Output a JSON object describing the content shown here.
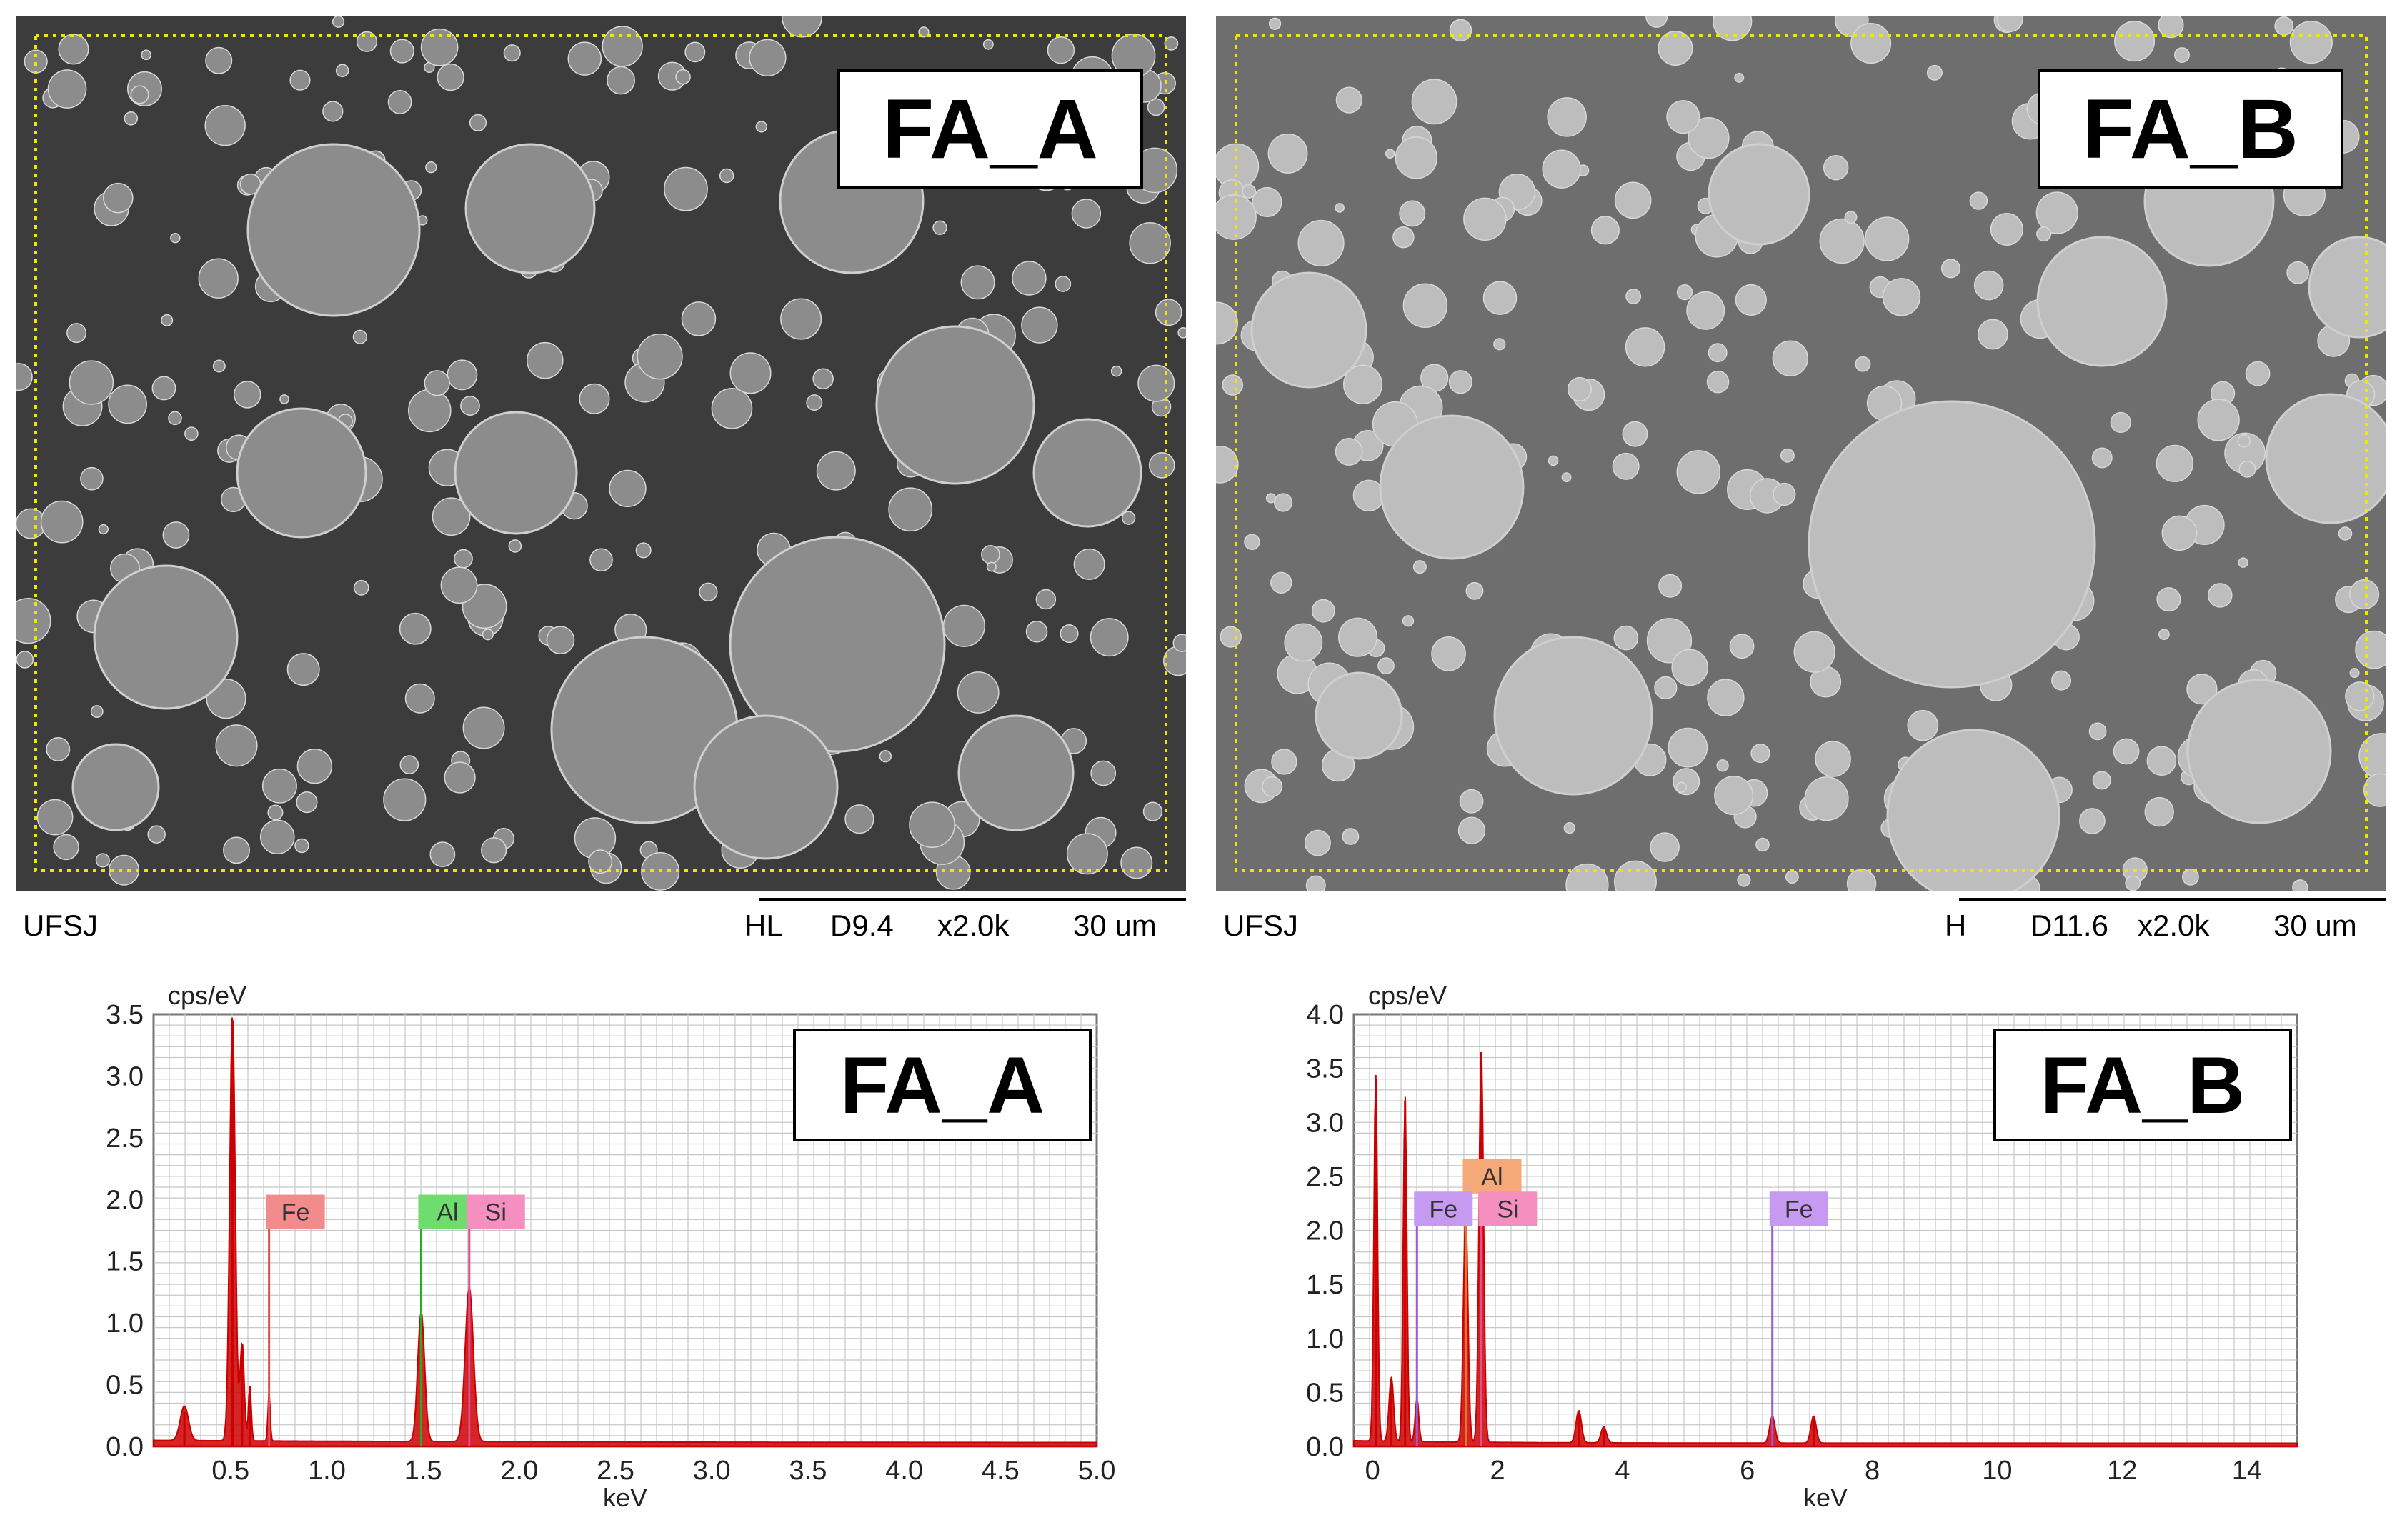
{
  "sem_panels": [
    {
      "label": "FA_A",
      "footer_left": "UFSJ",
      "footer_mode": "HL",
      "footer_wd": "D9.4",
      "footer_mag": "x2.0k",
      "footer_scale": "30 um",
      "background": "#3c3c3c",
      "particle_color": "#8c8c8c"
    },
    {
      "label": "FA_B",
      "footer_left": "UFSJ",
      "footer_mode": "H",
      "footer_wd": "D11.6",
      "footer_mag": "x2.0k",
      "footer_scale": "30 um",
      "background": "#6e6e6e",
      "particle_color": "#bdbdbd"
    }
  ],
  "chart_data": [
    {
      "type": "line",
      "title": "FA_A",
      "ylabel": "cps/eV",
      "xlabel": "keV",
      "xlim": [
        0.1,
        5.0
      ],
      "ylim": [
        0,
        3.5
      ],
      "xticks": [
        "0.5",
        "1.0",
        "1.5",
        "2.0",
        "2.5",
        "3.0",
        "3.5",
        "4.0",
        "4.5",
        "5.0"
      ],
      "xtick_values": [
        0.5,
        1.0,
        1.5,
        2.0,
        2.5,
        3.0,
        3.5,
        4.0,
        4.5,
        5.0
      ],
      "yticks": [
        "0.0",
        "0.5",
        "1.0",
        "1.5",
        "2.0",
        "2.5",
        "3.0",
        "3.5"
      ],
      "ytick_values": [
        0,
        0.5,
        1.0,
        1.5,
        2.0,
        2.5,
        3.0,
        3.5
      ],
      "grid": true,
      "series_color": "#cc0000",
      "peaks": [
        {
          "x": 0.26,
          "y": 0.28,
          "w": 0.03
        },
        {
          "x": 0.51,
          "y": 3.45,
          "w": 0.02
        },
        {
          "x": 0.56,
          "y": 0.8,
          "w": 0.015
        },
        {
          "x": 0.6,
          "y": 0.45,
          "w": 0.01
        },
        {
          "x": 0.7,
          "y": 0.4,
          "w": 0.008
        },
        {
          "x": 1.49,
          "y": 1.05,
          "w": 0.025
        },
        {
          "x": 1.74,
          "y": 1.25,
          "w": 0.03
        }
      ],
      "element_markers": [
        {
          "element": "Fe",
          "x": 0.7,
          "color": "#f28c8c",
          "line": "#e05050",
          "tag_y": 1.9
        },
        {
          "element": "Al",
          "x": 1.49,
          "color": "#6fdc6f",
          "line": "#22b022",
          "tag_y": 1.9
        },
        {
          "element": "Si",
          "x": 1.74,
          "color": "#f58fbf",
          "line": "#e0508f",
          "tag_y": 1.9
        }
      ]
    },
    {
      "type": "line",
      "title": "FA_B",
      "ylabel": "cps/eV",
      "xlabel": "keV",
      "xlim": [
        -0.3,
        14.8
      ],
      "ylim": [
        0,
        4.0
      ],
      "xticks": [
        "0",
        "2",
        "4",
        "6",
        "8",
        "10",
        "12",
        "14"
      ],
      "xtick_values": [
        0,
        2,
        4,
        6,
        8,
        10,
        12,
        14
      ],
      "yticks": [
        "0.0",
        "0.5",
        "1.0",
        "1.5",
        "2.0",
        "2.5",
        "3.0",
        "3.5",
        "4.0"
      ],
      "ytick_values": [
        0,
        0.5,
        1.0,
        1.5,
        2.0,
        2.5,
        3.0,
        3.5,
        4.0
      ],
      "grid": true,
      "series_color": "#cc0000",
      "peaks": [
        {
          "x": 0.05,
          "y": 3.4,
          "w": 0.04
        },
        {
          "x": 0.3,
          "y": 0.6,
          "w": 0.05
        },
        {
          "x": 0.52,
          "y": 3.2,
          "w": 0.04
        },
        {
          "x": 0.71,
          "y": 0.4,
          "w": 0.04
        },
        {
          "x": 1.49,
          "y": 2.15,
          "w": 0.05
        },
        {
          "x": 1.74,
          "y": 3.65,
          "w": 0.05
        },
        {
          "x": 3.3,
          "y": 0.3,
          "w": 0.06
        },
        {
          "x": 3.7,
          "y": 0.15,
          "w": 0.06
        },
        {
          "x": 6.4,
          "y": 0.25,
          "w": 0.06
        },
        {
          "x": 7.06,
          "y": 0.25,
          "w": 0.06
        }
      ],
      "element_markers": [
        {
          "element": "Al",
          "x": 1.49,
          "color": "#f5a878",
          "line": "#e07830",
          "tag_y": 2.5
        },
        {
          "element": "Fe",
          "x": 0.71,
          "color": "#c59af0",
          "line": "#9a5ae0",
          "tag_y": 2.2
        },
        {
          "element": "Si",
          "x": 1.74,
          "color": "#f58fbf",
          "line": "#e0508f",
          "tag_y": 2.2
        },
        {
          "element": "Fe",
          "x": 6.4,
          "color": "#c59af0",
          "line": "#9a5ae0",
          "tag_y": 2.2
        }
      ]
    }
  ]
}
